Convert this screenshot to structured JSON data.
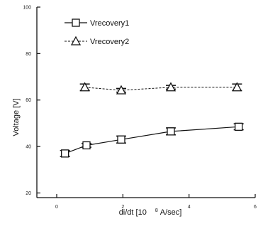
{
  "chart_data": {
    "type": "line",
    "x": [
      0.5,
      1,
      2,
      3.5,
      5.5
    ],
    "series": [
      {
        "name": "Vrecovery1",
        "marker": "square",
        "line_style": "solid",
        "x": [
          0.25,
          0.9,
          1.95,
          3.45,
          5.5
        ],
        "values": [
          37,
          40.5,
          43,
          46.5,
          48.5
        ],
        "errors": [
          1.3,
          0.8,
          1.5,
          1.5,
          1.3
        ]
      },
      {
        "name": "Vrecovery2",
        "marker": "triangle",
        "line_style": "dashed",
        "x": [
          0.85,
          1.95,
          3.45,
          5.45
        ],
        "values": [
          65.5,
          64.2,
          65.5,
          65.5
        ],
        "errors": [
          1.4,
          0.8,
          0.8,
          1.4
        ]
      }
    ],
    "xlabel": "di/dt [10",
    "xlabel_exp": "8",
    "xlabel_unit": "A/sec]",
    "ylabel": "Voltage [V]",
    "xlim": [
      -0.6,
      6.0
    ],
    "ylim": [
      18,
      100
    ],
    "xticks": [
      "0",
      "2",
      "4",
      "6"
    ],
    "yticks": [
      "20",
      "40",
      "60",
      "80",
      "100"
    ],
    "xtick_values": [
      0,
      2,
      4,
      6
    ],
    "ytick_values": [
      20,
      40,
      60,
      80,
      100
    ],
    "grid": false,
    "legend_position": "top-left"
  }
}
